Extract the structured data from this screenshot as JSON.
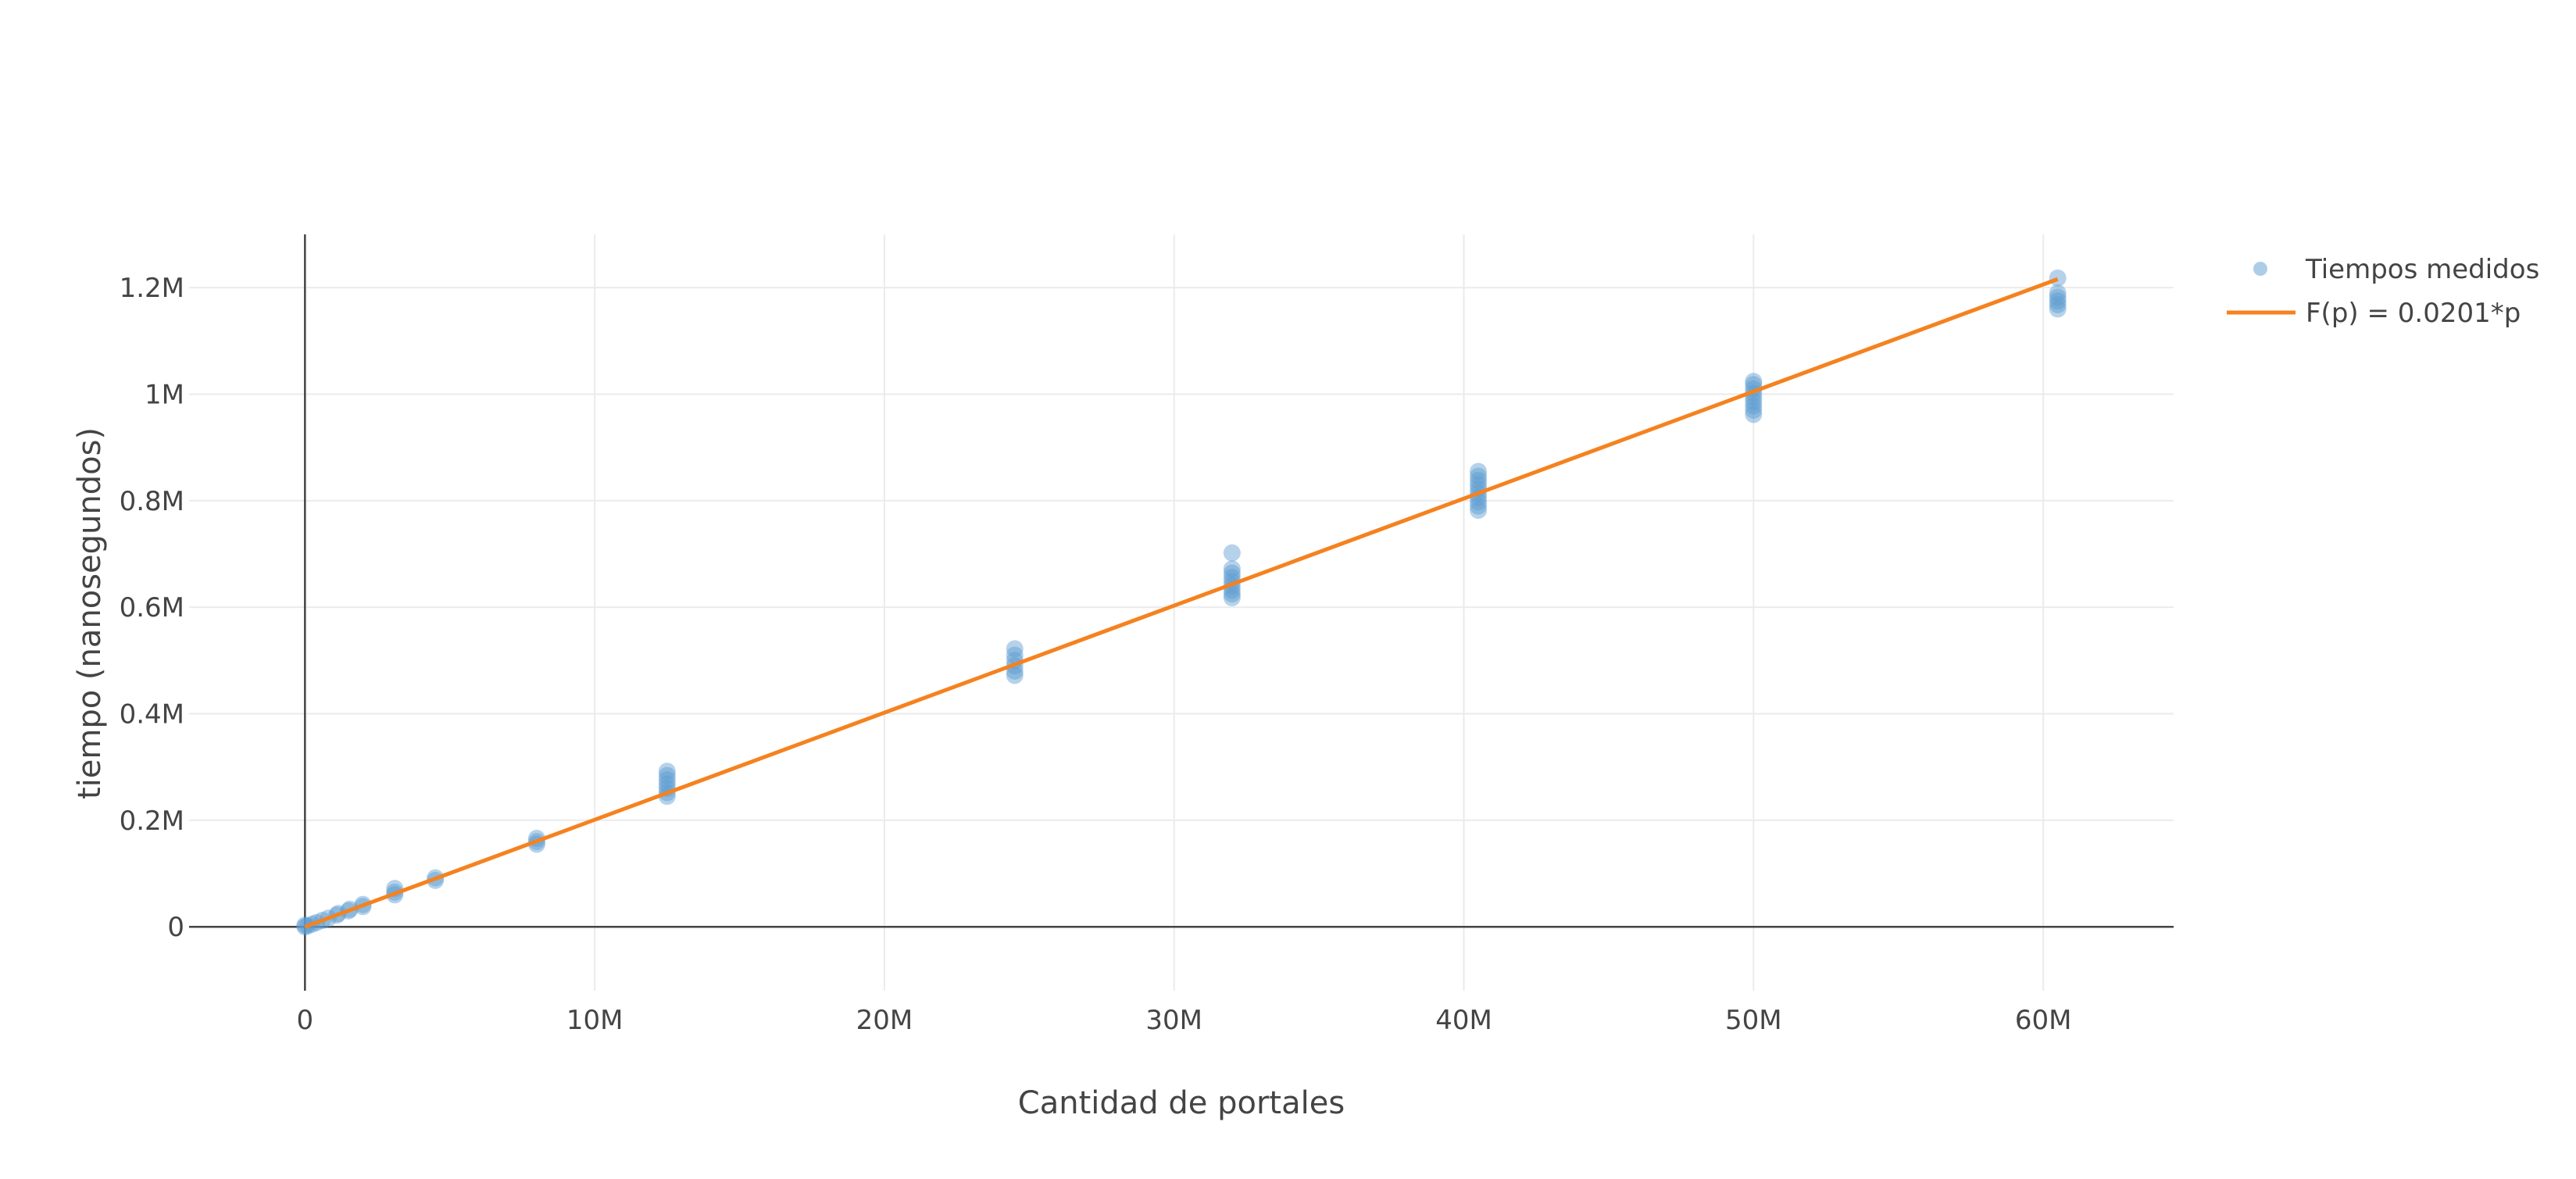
{
  "chart_data": {
    "type": "scatter",
    "title": "",
    "xlabel": "Cantidad de portales",
    "ylabel": "tiempo (nanosegundos)",
    "xlim": [
      -4000000,
      64500000
    ],
    "ylim": [
      -120000,
      1300000
    ],
    "x_ticks": [
      {
        "value": 0,
        "label": "0"
      },
      {
        "value": 10000000,
        "label": "10M"
      },
      {
        "value": 20000000,
        "label": "20M"
      },
      {
        "value": 30000000,
        "label": "30M"
      },
      {
        "value": 40000000,
        "label": "40M"
      },
      {
        "value": 50000000,
        "label": "50M"
      },
      {
        "value": 60000000,
        "label": "60M"
      }
    ],
    "y_ticks": [
      {
        "value": 0,
        "label": "0"
      },
      {
        "value": 200000,
        "label": "0.2M"
      },
      {
        "value": 400000,
        "label": "0.4M"
      },
      {
        "value": 600000,
        "label": "0.6M"
      },
      {
        "value": 800000,
        "label": "0.8M"
      },
      {
        "value": 1000000,
        "label": "1M"
      },
      {
        "value": 1200000,
        "label": "1.2M"
      }
    ],
    "grid": true,
    "legend_position": "top-right",
    "series": [
      {
        "name": "Tiempos medidos",
        "type": "scatter",
        "color": "#5b9bd0",
        "points": [
          {
            "x": 0,
            "y": 0
          },
          {
            "x": 0,
            "y": 3000
          },
          {
            "x": 100000,
            "y": 2000
          },
          {
            "x": 250000,
            "y": 5000
          },
          {
            "x": 400000,
            "y": 8000
          },
          {
            "x": 600000,
            "y": 12000
          },
          {
            "x": 800000,
            "y": 16000
          },
          {
            "x": 1100000,
            "y": 22000
          },
          {
            "x": 1150000,
            "y": 25000
          },
          {
            "x": 1500000,
            "y": 30000
          },
          {
            "x": 1550000,
            "y": 33000
          },
          {
            "x": 2000000,
            "y": 38000
          },
          {
            "x": 2000000,
            "y": 42000
          },
          {
            "x": 3100000,
            "y": 60000
          },
          {
            "x": 3100000,
            "y": 65000
          },
          {
            "x": 3100000,
            "y": 72000
          },
          {
            "x": 4500000,
            "y": 87000
          },
          {
            "x": 4500000,
            "y": 92000
          },
          {
            "x": 8000000,
            "y": 155000
          },
          {
            "x": 8000000,
            "y": 160000
          },
          {
            "x": 8000000,
            "y": 166000
          },
          {
            "x": 12500000,
            "y": 245000
          },
          {
            "x": 12500000,
            "y": 252000
          },
          {
            "x": 12500000,
            "y": 260000
          },
          {
            "x": 12500000,
            "y": 268000
          },
          {
            "x": 12500000,
            "y": 276000
          },
          {
            "x": 12500000,
            "y": 284000
          },
          {
            "x": 12500000,
            "y": 292000
          },
          {
            "x": 24500000,
            "y": 472000
          },
          {
            "x": 24500000,
            "y": 480000
          },
          {
            "x": 24500000,
            "y": 490000
          },
          {
            "x": 24500000,
            "y": 500000
          },
          {
            "x": 24500000,
            "y": 510000
          },
          {
            "x": 24500000,
            "y": 522000
          },
          {
            "x": 32000000,
            "y": 618000
          },
          {
            "x": 32000000,
            "y": 625000
          },
          {
            "x": 32000000,
            "y": 632000
          },
          {
            "x": 32000000,
            "y": 640000
          },
          {
            "x": 32000000,
            "y": 648000
          },
          {
            "x": 32000000,
            "y": 656000
          },
          {
            "x": 32000000,
            "y": 664000
          },
          {
            "x": 32000000,
            "y": 672000
          },
          {
            "x": 32000000,
            "y": 702000
          },
          {
            "x": 40500000,
            "y": 782000
          },
          {
            "x": 40500000,
            "y": 790000
          },
          {
            "x": 40500000,
            "y": 798000
          },
          {
            "x": 40500000,
            "y": 806000
          },
          {
            "x": 40500000,
            "y": 814000
          },
          {
            "x": 40500000,
            "y": 822000
          },
          {
            "x": 40500000,
            "y": 830000
          },
          {
            "x": 40500000,
            "y": 838000
          },
          {
            "x": 40500000,
            "y": 846000
          },
          {
            "x": 40500000,
            "y": 855000
          },
          {
            "x": 50000000,
            "y": 962000
          },
          {
            "x": 50000000,
            "y": 970000
          },
          {
            "x": 50000000,
            "y": 978000
          },
          {
            "x": 50000000,
            "y": 986000
          },
          {
            "x": 50000000,
            "y": 994000
          },
          {
            "x": 50000000,
            "y": 1002000
          },
          {
            "x": 50000000,
            "y": 1010000
          },
          {
            "x": 50000000,
            "y": 1018000
          },
          {
            "x": 50000000,
            "y": 1024000
          },
          {
            "x": 60500000,
            "y": 1160000
          },
          {
            "x": 60500000,
            "y": 1168000
          },
          {
            "x": 60500000,
            "y": 1175000
          },
          {
            "x": 60500000,
            "y": 1182000
          },
          {
            "x": 60500000,
            "y": 1190000
          },
          {
            "x": 60500000,
            "y": 1218000
          }
        ]
      },
      {
        "name": "F(p) = 0.0201*p",
        "type": "line",
        "color": "#f5821f",
        "points": [
          {
            "x": 0,
            "y": 0
          },
          {
            "x": 60500000,
            "y": 1216050
          }
        ]
      }
    ]
  }
}
